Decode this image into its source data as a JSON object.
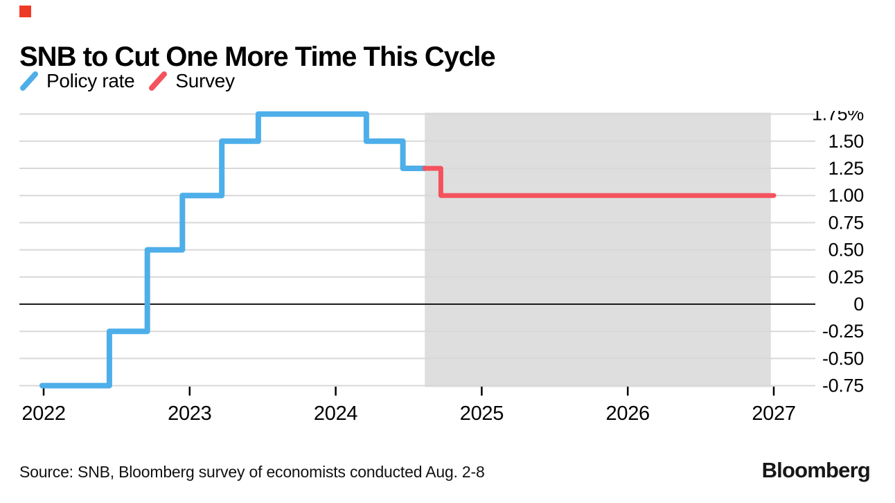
{
  "brand": {
    "accent_square_color": "#ee3b28",
    "logo_text": "Bloomberg"
  },
  "header": {
    "title": "SNB to Cut One More Time This Cycle"
  },
  "legend": {
    "items": [
      {
        "label": "Policy rate",
        "color": "#4daee9"
      },
      {
        "label": "Survey",
        "color": "#f4535e"
      }
    ]
  },
  "footer": {
    "source": "Source: SNB, Bloomberg survey of economists conducted Aug. 2-8"
  },
  "chart_data": {
    "type": "line",
    "subtype": "step-after",
    "title": "SNB to Cut One More Time This Cycle",
    "xlabel": "",
    "ylabel": "",
    "unit": "%",
    "xlim": [
      2021.99,
      2027.35
    ],
    "ylim": [
      -0.75,
      1.75
    ],
    "grid": true,
    "grid_color": "#d8d8d8",
    "zero_line": true,
    "zero_line_color": "#1a1a1a",
    "x_ticks": [
      {
        "t": 2022,
        "label": "2022"
      },
      {
        "t": 2023,
        "label": "2023"
      },
      {
        "t": 2024,
        "label": "2024"
      },
      {
        "t": 2025,
        "label": "2025"
      },
      {
        "t": 2026,
        "label": "2026"
      },
      {
        "t": 2027,
        "label": "2027"
      }
    ],
    "y_ticks": [
      {
        "v": 1.75,
        "label": "1.75%"
      },
      {
        "v": 1.5,
        "label": "1.50"
      },
      {
        "v": 1.25,
        "label": "1.25"
      },
      {
        "v": 1.0,
        "label": "1.00"
      },
      {
        "v": 0.75,
        "label": "0.75"
      },
      {
        "v": 0.5,
        "label": "0.50"
      },
      {
        "v": 0.25,
        "label": "0.25"
      },
      {
        "v": 0,
        "label": "0"
      },
      {
        "v": -0.25,
        "label": "-0.25"
      },
      {
        "v": -0.5,
        "label": "-0.50"
      },
      {
        "v": -0.75,
        "label": "-0.75"
      }
    ],
    "shaded_region": {
      "from": 2024.61,
      "to": 2026.98,
      "color": "#dedede",
      "meaning": "forecast period"
    },
    "series": [
      {
        "name": "Policy rate",
        "color": "#4daee9",
        "stroke_width": 8,
        "steps": [
          [
            2021.99,
            -0.75
          ],
          [
            2022.45,
            -0.25
          ],
          [
            2022.71,
            0.5
          ],
          [
            2022.95,
            1.0
          ],
          [
            2023.22,
            1.5
          ],
          [
            2023.47,
            1.75
          ],
          [
            2024.21,
            1.5
          ],
          [
            2024.46,
            1.25
          ]
        ],
        "end_t": 2024.61
      },
      {
        "name": "Survey",
        "color": "#f4535e",
        "stroke_width": 7,
        "steps": [
          [
            2024.61,
            1.25
          ],
          [
            2024.72,
            1.0
          ]
        ],
        "end_t": 2027.0
      }
    ]
  }
}
